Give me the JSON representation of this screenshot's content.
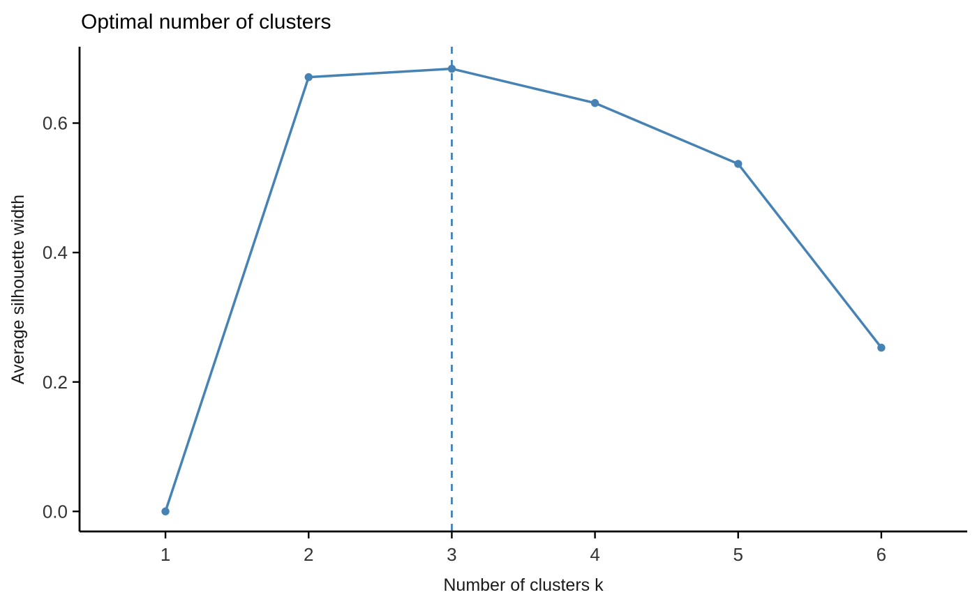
{
  "chart_data": {
    "type": "line",
    "title": "Optimal number of clusters",
    "xlabel": "Number of clusters k",
    "ylabel": "Average silhouette width",
    "series": [
      {
        "name": "average-silhouette-width",
        "x": [
          1,
          2,
          3,
          4,
          5,
          6
        ],
        "y": [
          0.0,
          0.671,
          0.684,
          0.631,
          0.537,
          0.253
        ]
      }
    ],
    "xticks": {
      "values": [
        1,
        2,
        3,
        4,
        5,
        6
      ],
      "labels": [
        "1",
        "2",
        "3",
        "4",
        "5",
        "6"
      ]
    },
    "yticks": {
      "values": [
        0.0,
        0.2,
        0.4,
        0.6
      ],
      "labels": [
        "0.0",
        "0.2",
        "0.4",
        "0.6"
      ]
    },
    "xlim": [
      0.4,
      6.6
    ],
    "ylim": [
      -0.031,
      0.718
    ],
    "vline": {
      "x": 3,
      "style": "dashed",
      "meaning": "optimal-k"
    },
    "series_color": "#4682B4",
    "axis_color": "#000000",
    "grid": false,
    "legend": "none"
  }
}
